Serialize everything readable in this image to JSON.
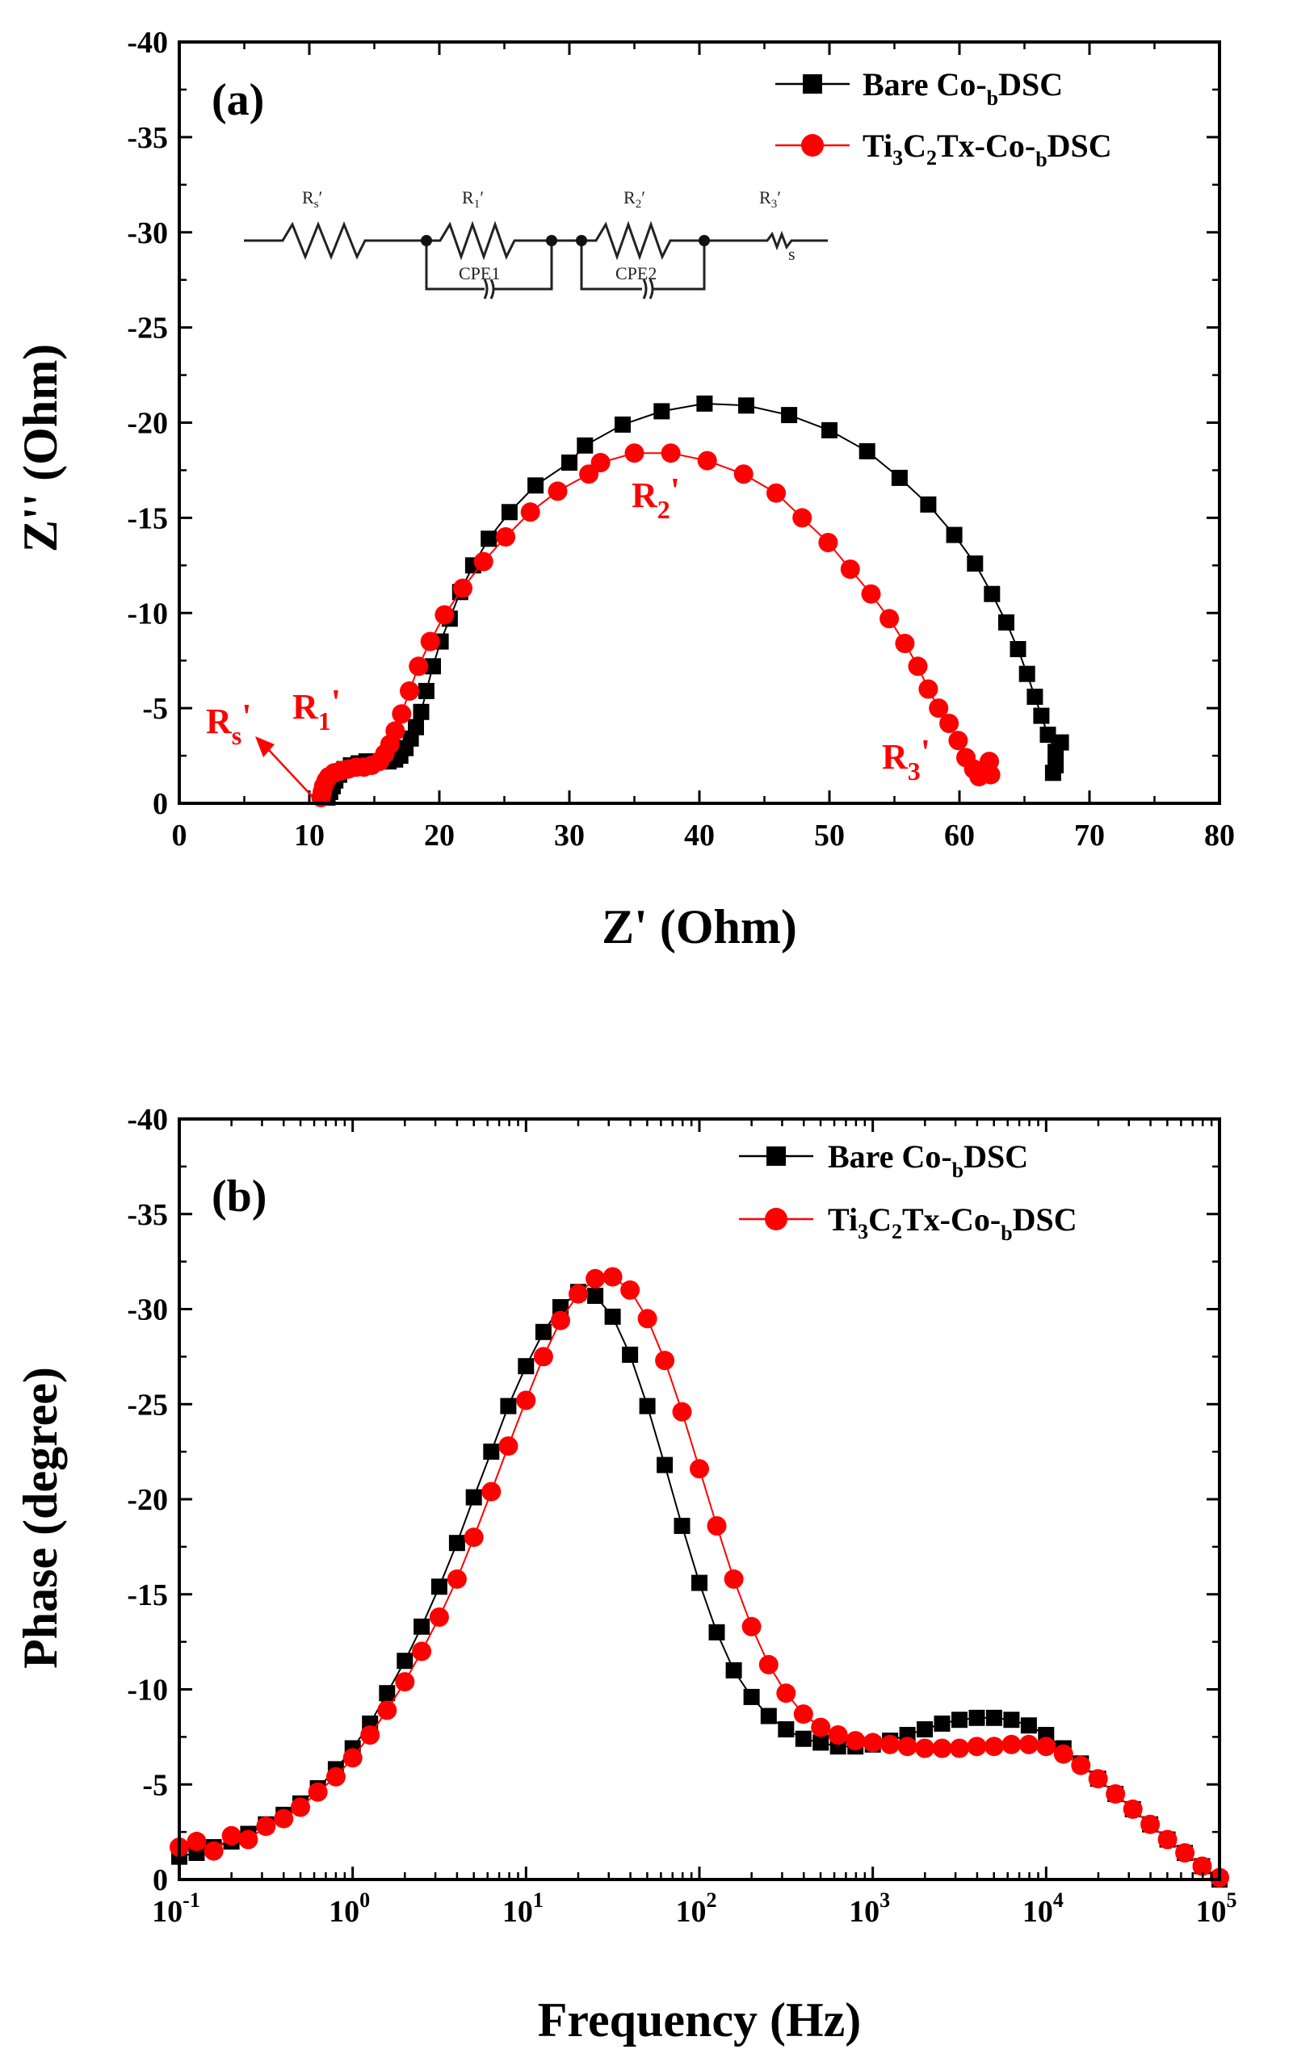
{
  "colors": {
    "series1": "#000000",
    "series2": "#ff0000",
    "axis": "#000000"
  },
  "chart_data": [
    {
      "type": "scatter",
      "panel": "(a)",
      "title": "",
      "xlabel": "Z' (Ohm)",
      "ylabel": "Z'' (Ohm)",
      "xlim": [
        0,
        80
      ],
      "ylim": [
        0,
        -40
      ],
      "xticks": [
        "0",
        "10",
        "20",
        "30",
        "40",
        "50",
        "60",
        "70",
        "80"
      ],
      "yticks": [
        "0",
        "-5",
        "-10",
        "-15",
        "-20",
        "-25",
        "-30",
        "-35",
        "-40"
      ],
      "legend": {
        "position": "top-right",
        "entries": [
          {
            "main": "Bare Co-",
            "sub": "b",
            "tail": "DSC"
          },
          {
            "main": "Ti",
            "sub": "3",
            "main2": "C",
            "sub2": "2",
            "tail": "Tx-Co-",
            "sub3": "b",
            "tail2": "DSC"
          }
        ]
      },
      "annotations": [
        {
          "text": "R",
          "sub": "s",
          "sup": "'"
        },
        {
          "text": "R",
          "sub": "1",
          "sup": "'"
        },
        {
          "text": "R",
          "sub": "2",
          "sup": "'"
        },
        {
          "text": "R",
          "sub": "3",
          "sup": "'"
        }
      ],
      "circuit": {
        "labels": [
          "Rs'",
          "R1'",
          "R2'",
          "R3'"
        ],
        "elements": [
          "CPE1",
          "CPE2"
        ],
        "warburg": "s"
      },
      "series": [
        {
          "name": "Bare Co-bDSC",
          "marker": "square",
          "points": [
            [
              11.4,
              -0.3
            ],
            [
              11.6,
              -0.6
            ],
            [
              11.8,
              -0.9
            ],
            [
              12.0,
              -1.2
            ],
            [
              12.3,
              -1.5
            ],
            [
              12.7,
              -1.8
            ],
            [
              13.2,
              -2.0
            ],
            [
              13.8,
              -2.1
            ],
            [
              14.4,
              -2.2
            ],
            [
              15.0,
              -2.2
            ],
            [
              15.6,
              -2.2
            ],
            [
              16.1,
              -2.2
            ],
            [
              16.6,
              -2.3
            ],
            [
              17.0,
              -2.5
            ],
            [
              17.4,
              -2.9
            ],
            [
              17.8,
              -3.4
            ],
            [
              18.2,
              -4.0
            ],
            [
              18.6,
              -4.8
            ],
            [
              19.0,
              -5.9
            ],
            [
              19.5,
              -7.2
            ],
            [
              20.1,
              -8.5
            ],
            [
              20.8,
              -9.7
            ],
            [
              21.6,
              -11.1
            ],
            [
              22.6,
              -12.5
            ],
            [
              23.8,
              -13.9
            ],
            [
              25.4,
              -15.3
            ],
            [
              27.4,
              -16.7
            ],
            [
              30.0,
              -17.9
            ],
            [
              31.2,
              -18.8
            ],
            [
              34.1,
              -19.9
            ],
            [
              37.1,
              -20.6
            ],
            [
              40.4,
              -21.0
            ],
            [
              43.6,
              -20.9
            ],
            [
              46.9,
              -20.4
            ],
            [
              50.0,
              -19.6
            ],
            [
              52.9,
              -18.5
            ],
            [
              55.4,
              -17.1
            ],
            [
              57.6,
              -15.7
            ],
            [
              59.6,
              -14.1
            ],
            [
              61.2,
              -12.6
            ],
            [
              62.5,
              -11.0
            ],
            [
              63.6,
              -9.5
            ],
            [
              64.5,
              -8.1
            ],
            [
              65.2,
              -6.8
            ],
            [
              65.8,
              -5.6
            ],
            [
              66.3,
              -4.6
            ],
            [
              66.8,
              -3.6
            ],
            [
              67.4,
              -2.7
            ],
            [
              67.8,
              -3.2
            ],
            [
              67.4,
              -2.0
            ],
            [
              67.2,
              -1.6
            ]
          ]
        },
        {
          "name": "Ti3C2Tx-Co-bDSC",
          "marker": "circle",
          "points": [
            [
              10.9,
              -0.3
            ],
            [
              11.0,
              -0.6
            ],
            [
              11.1,
              -0.9
            ],
            [
              11.3,
              -1.2
            ],
            [
              11.5,
              -1.4
            ],
            [
              11.9,
              -1.6
            ],
            [
              12.4,
              -1.7
            ],
            [
              13.0,
              -1.8
            ],
            [
              13.6,
              -1.9
            ],
            [
              14.2,
              -1.9
            ],
            [
              14.8,
              -2.0
            ],
            [
              15.4,
              -2.2
            ],
            [
              15.8,
              -2.6
            ],
            [
              16.2,
              -3.1
            ],
            [
              16.6,
              -3.8
            ],
            [
              17.1,
              -4.7
            ],
            [
              17.7,
              -5.9
            ],
            [
              18.4,
              -7.2
            ],
            [
              19.3,
              -8.5
            ],
            [
              20.4,
              -9.9
            ],
            [
              21.8,
              -11.3
            ],
            [
              23.4,
              -12.7
            ],
            [
              25.1,
              -14.0
            ],
            [
              27.0,
              -15.3
            ],
            [
              29.1,
              -16.4
            ],
            [
              31.5,
              -17.3
            ],
            [
              32.4,
              -17.9
            ],
            [
              35.0,
              -18.4
            ],
            [
              37.8,
              -18.4
            ],
            [
              40.6,
              -18.0
            ],
            [
              43.4,
              -17.3
            ],
            [
              45.9,
              -16.3
            ],
            [
              47.9,
              -15.0
            ],
            [
              49.9,
              -13.7
            ],
            [
              51.6,
              -12.3
            ],
            [
              53.2,
              -11.0
            ],
            [
              54.6,
              -9.7
            ],
            [
              55.8,
              -8.4
            ],
            [
              56.8,
              -7.2
            ],
            [
              57.6,
              -6.0
            ],
            [
              58.4,
              -5.0
            ],
            [
              59.2,
              -4.2
            ],
            [
              59.9,
              -3.3
            ],
            [
              60.5,
              -2.4
            ],
            [
              61.1,
              -1.8
            ],
            [
              61.5,
              -1.4
            ],
            [
              62.0,
              -1.6
            ],
            [
              62.3,
              -2.2
            ],
            [
              62.4,
              -1.5
            ]
          ]
        }
      ]
    },
    {
      "type": "scatter",
      "panel": "(b)",
      "title": "",
      "xlabel": "Frequency (Hz)",
      "ylabel": "Phase (degree)",
      "xscale": "log",
      "xlim_exp": [
        -1,
        5
      ],
      "ylim": [
        0,
        -40
      ],
      "xticks": [
        {
          "base": "10",
          "exp": "-1"
        },
        {
          "base": "10",
          "exp": "0"
        },
        {
          "base": "10",
          "exp": "1"
        },
        {
          "base": "10",
          "exp": "2"
        },
        {
          "base": "10",
          "exp": "3"
        },
        {
          "base": "10",
          "exp": "4"
        },
        {
          "base": "10",
          "exp": "5"
        }
      ],
      "yticks": [
        "0",
        "-5",
        "-10",
        "-15",
        "-20",
        "-25",
        "-30",
        "-35",
        "-40"
      ],
      "legend": {
        "position": "top-right",
        "entries": [
          {
            "main": "Bare Co-",
            "sub": "b",
            "tail": "DSC"
          },
          {
            "main": "Ti",
            "sub": "3",
            "main2": "C",
            "sub2": "2",
            "tail": "Tx-Co-",
            "sub3": "b",
            "tail2": "DSC"
          }
        ]
      },
      "series": [
        {
          "name": "Bare Co-bDSC",
          "marker": "square",
          "points": [
            [
              0.1,
              -1.2
            ],
            [
              0.126,
              -1.4
            ],
            [
              0.158,
              -1.7
            ],
            [
              0.2,
              -2.0
            ],
            [
              0.25,
              -2.4
            ],
            [
              0.316,
              -2.9
            ],
            [
              0.4,
              -3.4
            ],
            [
              0.5,
              -4.0
            ],
            [
              0.63,
              -4.8
            ],
            [
              0.8,
              -5.8
            ],
            [
              1.0,
              -6.9
            ],
            [
              1.26,
              -8.2
            ],
            [
              1.58,
              -9.8
            ],
            [
              2.0,
              -11.5
            ],
            [
              2.5,
              -13.3
            ],
            [
              3.16,
              -15.4
            ],
            [
              4.0,
              -17.7
            ],
            [
              5.0,
              -20.1
            ],
            [
              6.3,
              -22.5
            ],
            [
              7.9,
              -24.9
            ],
            [
              10.0,
              -27.0
            ],
            [
              12.6,
              -28.8
            ],
            [
              15.8,
              -30.1
            ],
            [
              20.0,
              -30.9
            ],
            [
              25.1,
              -30.7
            ],
            [
              31.6,
              -29.6
            ],
            [
              39.8,
              -27.6
            ],
            [
              50.1,
              -24.9
            ],
            [
              63.1,
              -21.8
            ],
            [
              79.4,
              -18.6
            ],
            [
              100,
              -15.6
            ],
            [
              126,
              -13.0
            ],
            [
              158,
              -11.0
            ],
            [
              200,
              -9.6
            ],
            [
              251,
              -8.6
            ],
            [
              316,
              -7.9
            ],
            [
              398,
              -7.4
            ],
            [
              501,
              -7.2
            ],
            [
              631,
              -7.0
            ],
            [
              794,
              -7.0
            ],
            [
              1000,
              -7.1
            ],
            [
              1259,
              -7.3
            ],
            [
              1585,
              -7.6
            ],
            [
              1995,
              -7.9
            ],
            [
              2512,
              -8.2
            ],
            [
              3162,
              -8.4
            ],
            [
              3981,
              -8.5
            ],
            [
              5012,
              -8.5
            ],
            [
              6310,
              -8.4
            ],
            [
              7943,
              -8.1
            ],
            [
              10000,
              -7.6
            ],
            [
              12589,
              -6.9
            ],
            [
              15849,
              -6.1
            ],
            [
              19953,
              -5.3
            ],
            [
              25119,
              -4.5
            ],
            [
              31623,
              -3.7
            ],
            [
              39811,
              -2.9
            ],
            [
              50119,
              -2.1
            ],
            [
              63096,
              -1.4
            ],
            [
              79433,
              -0.7
            ],
            [
              100000,
              0.0
            ]
          ]
        },
        {
          "name": "Ti3C2Tx-Co-bDSC",
          "marker": "circle",
          "points": [
            [
              0.1,
              -1.7
            ],
            [
              0.126,
              -2.0
            ],
            [
              0.158,
              -1.5
            ],
            [
              0.2,
              -2.3
            ],
            [
              0.25,
              -2.1
            ],
            [
              0.316,
              -2.8
            ],
            [
              0.4,
              -3.2
            ],
            [
              0.5,
              -3.8
            ],
            [
              0.63,
              -4.6
            ],
            [
              0.8,
              -5.4
            ],
            [
              1.0,
              -6.4
            ],
            [
              1.26,
              -7.6
            ],
            [
              1.58,
              -8.9
            ],
            [
              2.0,
              -10.4
            ],
            [
              2.5,
              -12.0
            ],
            [
              3.16,
              -13.8
            ],
            [
              4.0,
              -15.8
            ],
            [
              5.0,
              -18.0
            ],
            [
              6.3,
              -20.4
            ],
            [
              7.9,
              -22.8
            ],
            [
              10.0,
              -25.2
            ],
            [
              12.6,
              -27.5
            ],
            [
              15.8,
              -29.4
            ],
            [
              20.0,
              -30.8
            ],
            [
              25.1,
              -31.6
            ],
            [
              31.6,
              -31.7
            ],
            [
              39.8,
              -31.0
            ],
            [
              50.1,
              -29.5
            ],
            [
              63.1,
              -27.3
            ],
            [
              79.4,
              -24.6
            ],
            [
              100,
              -21.6
            ],
            [
              126,
              -18.6
            ],
            [
              158,
              -15.8
            ],
            [
              200,
              -13.3
            ],
            [
              251,
              -11.3
            ],
            [
              316,
              -9.8
            ],
            [
              398,
              -8.7
            ],
            [
              501,
              -8.0
            ],
            [
              631,
              -7.6
            ],
            [
              794,
              -7.3
            ],
            [
              1000,
              -7.2
            ],
            [
              1259,
              -7.1
            ],
            [
              1585,
              -7.0
            ],
            [
              1995,
              -6.9
            ],
            [
              2512,
              -6.9
            ],
            [
              3162,
              -6.9
            ],
            [
              3981,
              -7.0
            ],
            [
              5012,
              -7.0
            ],
            [
              6310,
              -7.1
            ],
            [
              7943,
              -7.1
            ],
            [
              10000,
              -7.0
            ],
            [
              12589,
              -6.6
            ],
            [
              15849,
              -6.0
            ],
            [
              19953,
              -5.3
            ],
            [
              25119,
              -4.5
            ],
            [
              31623,
              -3.7
            ],
            [
              39811,
              -2.9
            ],
            [
              50119,
              -2.1
            ],
            [
              63096,
              -1.4
            ],
            [
              79433,
              -0.7
            ],
            [
              100000,
              -0.1
            ]
          ]
        }
      ]
    }
  ]
}
